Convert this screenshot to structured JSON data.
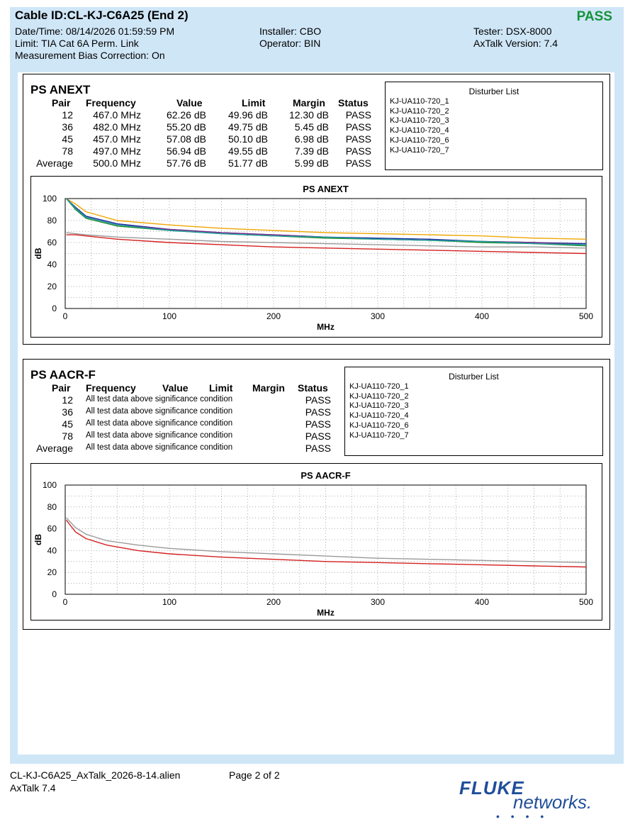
{
  "header": {
    "cable_id": "Cable ID:CL-KJ-C6A25 (End 2)",
    "result": "PASS",
    "datetime": "Date/Time: 08/14/2026  01:59:59 PM",
    "limit": "Limit: TIA Cat 6A Perm. Link",
    "bias": "Measurement Bias Correction: On",
    "installer": "Installer: CBO",
    "operator": "Operator: BIN",
    "tester": "Tester: DSX-8000",
    "axtalk_version": "AxTalk Version: 7.4"
  },
  "anext": {
    "title": "PS ANEXT",
    "columns": [
      "Pair",
      "Frequency",
      "Value",
      "Limit",
      "Margin",
      "Status"
    ],
    "rows": [
      {
        "pair": "12",
        "freq": "467.0 MHz",
        "value": "62.26 dB",
        "limit": "49.96 dB",
        "margin": "12.30 dB",
        "status": "PASS"
      },
      {
        "pair": "36",
        "freq": "482.0 MHz",
        "value": "55.20 dB",
        "limit": "49.75 dB",
        "margin": "5.45 dB",
        "status": "PASS"
      },
      {
        "pair": "45",
        "freq": "457.0 MHz",
        "value": "57.08 dB",
        "limit": "50.10 dB",
        "margin": "6.98 dB",
        "status": "PASS"
      },
      {
        "pair": "78",
        "freq": "497.0 MHz",
        "value": "56.94 dB",
        "limit": "49.55 dB",
        "margin": "7.39 dB",
        "status": "PASS"
      },
      {
        "pair": "Average",
        "freq": "500.0 MHz",
        "value": "57.76 dB",
        "limit": "51.77 dB",
        "margin": "5.99 dB",
        "status": "PASS"
      }
    ],
    "disturber_title": "Disturber List",
    "disturbers": [
      "KJ-UA110-720_1",
      "KJ-UA110-720_2",
      "KJ-UA110-720_3",
      "KJ-UA110-720_4",
      "KJ-UA110-720_6",
      "KJ-UA110-720_7"
    ],
    "chart": {
      "title": "PS ANEXT",
      "xlabel": "MHz",
      "ylabel": "dB",
      "xlim": [
        0,
        500
      ],
      "ylim": [
        0,
        100
      ],
      "xticks": [
        "0",
        "100",
        "200",
        "300",
        "400",
        "500"
      ],
      "yticks": [
        "0",
        "20",
        "40",
        "60",
        "80",
        "100"
      ]
    }
  },
  "aacr": {
    "title": "PS AACR-F",
    "columns": [
      "Pair",
      "Frequency",
      "Value",
      "Limit",
      "Margin",
      "Status"
    ],
    "rows": [
      {
        "pair": "12",
        "note": "All test data above significance condition",
        "status": "PASS"
      },
      {
        "pair": "36",
        "note": "All test data above significance condition",
        "status": "PASS"
      },
      {
        "pair": "45",
        "note": "All test data above significance condition",
        "status": "PASS"
      },
      {
        "pair": "78",
        "note": "All test data above significance condition",
        "status": "PASS"
      },
      {
        "pair": "Average",
        "note": "All test data above significance condition",
        "status": "PASS"
      }
    ],
    "disturber_title": "Disturber List",
    "disturbers": [
      "KJ-UA110-720_1",
      "KJ-UA110-720_2",
      "KJ-UA110-720_3",
      "KJ-UA110-720_4",
      "KJ-UA110-720_6",
      "KJ-UA110-720_7"
    ],
    "chart": {
      "title": "PS AACR-F",
      "xlabel": "MHz",
      "ylabel": "dB",
      "xlim": [
        0,
        500
      ],
      "ylim": [
        0,
        100
      ],
      "xticks": [
        "0",
        "100",
        "200",
        "300",
        "400",
        "500"
      ],
      "yticks": [
        "0",
        "20",
        "40",
        "60",
        "80",
        "100"
      ]
    }
  },
  "chart_data": [
    {
      "type": "line",
      "title": "PS ANEXT",
      "xlabel": "MHz",
      "ylabel": "dB",
      "xlim": [
        0,
        500
      ],
      "ylim": [
        0,
        100
      ],
      "grid": true,
      "x": [
        1,
        10,
        20,
        50,
        100,
        150,
        200,
        250,
        300,
        350,
        400,
        450,
        500
      ],
      "series": [
        {
          "color": "#f0a500",
          "values": [
            100,
            95,
            88,
            80,
            76,
            73,
            71,
            69,
            68,
            67,
            66,
            64,
            63
          ]
        },
        {
          "color": "#1a2a9c",
          "values": [
            100,
            92,
            84,
            77,
            72,
            69,
            67,
            65,
            64,
            63,
            61,
            60,
            59
          ]
        },
        {
          "color": "#7a2a8a",
          "values": [
            100,
            91,
            83,
            76,
            72,
            69,
            67,
            65,
            63,
            62,
            61,
            60,
            58
          ]
        },
        {
          "color": "#1e8a2e",
          "values": [
            100,
            90,
            82,
            75,
            71,
            68,
            66,
            64,
            63,
            62,
            60,
            59,
            57
          ]
        },
        {
          "color": "#20a0a0",
          "values": [
            100,
            91,
            83,
            76,
            71,
            68,
            66,
            65,
            63,
            62,
            61,
            59,
            58
          ]
        },
        {
          "color": "#9a9a9a",
          "values": [
            69,
            68,
            67,
            65,
            63,
            61,
            60,
            59,
            58,
            57,
            56,
            56,
            55
          ]
        },
        {
          "color": "#d42020",
          "values": [
            67,
            67,
            66,
            63,
            60,
            58,
            56,
            55,
            54,
            53,
            52,
            51,
            50
          ]
        }
      ]
    },
    {
      "type": "line",
      "title": "PS AACR-F",
      "xlabel": "MHz",
      "ylabel": "dB",
      "xlim": [
        0,
        500
      ],
      "ylim": [
        0,
        100
      ],
      "grid": true,
      "x": [
        1,
        5,
        10,
        20,
        40,
        70,
        100,
        150,
        200,
        250,
        300,
        350,
        400,
        450,
        500
      ],
      "series": [
        {
          "color": "#9a9a9a",
          "values": [
            70,
            66,
            61,
            55,
            49,
            45,
            42,
            39,
            37,
            35,
            33,
            32,
            31,
            30,
            29
          ]
        },
        {
          "color": "#d42020",
          "values": [
            68,
            63,
            57,
            51,
            45,
            40,
            37,
            34,
            32,
            30,
            29,
            28,
            27,
            26,
            25
          ]
        }
      ]
    }
  ],
  "footer": {
    "filename": "CL-KJ-C6A25_AxTalk_2026-8-14.alien",
    "page": "Page 2 of 2",
    "app": "AxTalk 7.4",
    "logo_fluke": "FLUKE",
    "logo_networks": "networks."
  }
}
